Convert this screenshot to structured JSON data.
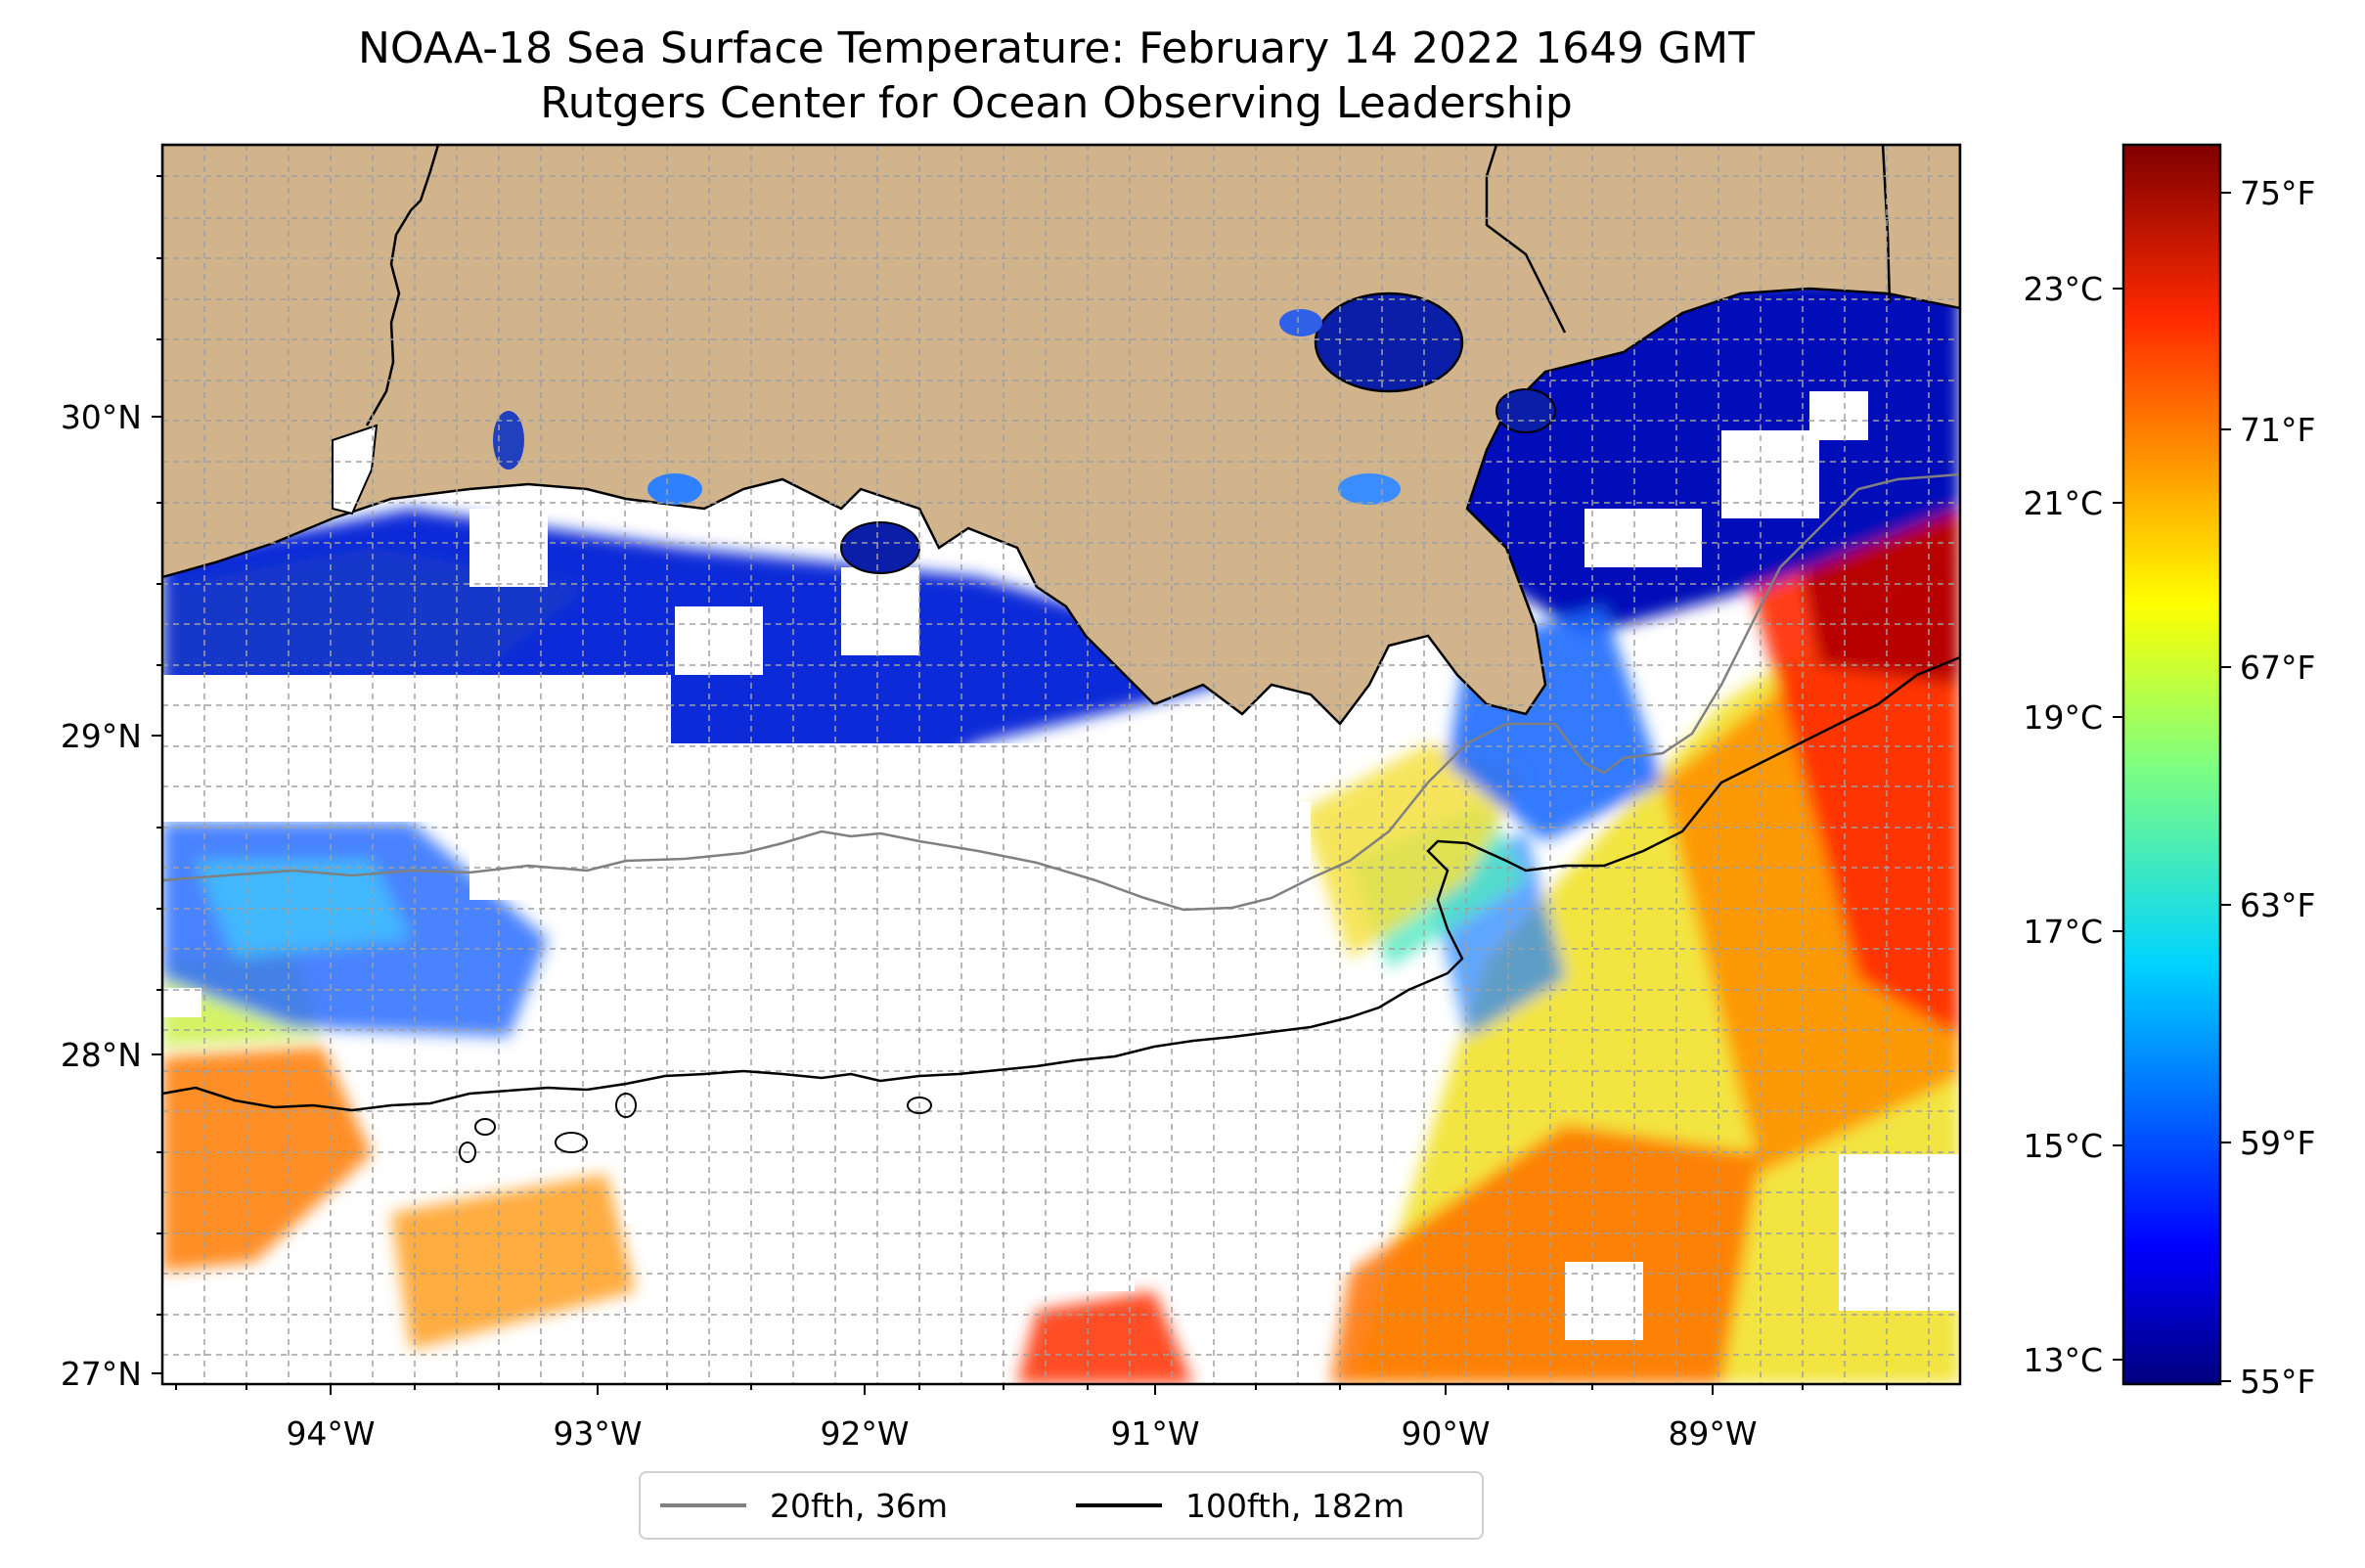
{
  "title": {
    "line1": "NOAA-18 Sea Surface Temperature: February 14 2022 1649 GMT",
    "line2": "Rutgers Center for Ocean Observing Leadership"
  },
  "map": {
    "longitude_ticks": [
      "94°W",
      "93°W",
      "92°W",
      "91°W",
      "90°W",
      "89°W"
    ],
    "latitude_ticks": [
      "30°N",
      "29°N",
      "28°N",
      "27°N"
    ],
    "lon_range": [
      -94.6,
      -88.2
    ],
    "lat_range": [
      26.95,
      30.85
    ],
    "land_color": "#d2b48c",
    "no_data_color": "#ffffff",
    "gridlines": true
  },
  "colorbar": {
    "celsius_ticks": [
      "23°C",
      "21°C",
      "19°C",
      "17°C",
      "15°C",
      "13°C"
    ],
    "fahrenheit_ticks": [
      "75°F",
      "71°F",
      "67°F",
      "63°F",
      "59°F",
      "55°F"
    ],
    "colormap": "jet",
    "range_f": [
      55,
      76
    ],
    "colors": [
      "#00007f",
      "#0000ff",
      "#007fff",
      "#00ffff",
      "#7fff7f",
      "#ffff00",
      "#ff7f00",
      "#ff0000",
      "#7f0000"
    ]
  },
  "legend": {
    "items": [
      {
        "label": "20fth, 36m",
        "color": "#808080"
      },
      {
        "label": "100fth, 182m",
        "color": "#000000"
      }
    ]
  }
}
